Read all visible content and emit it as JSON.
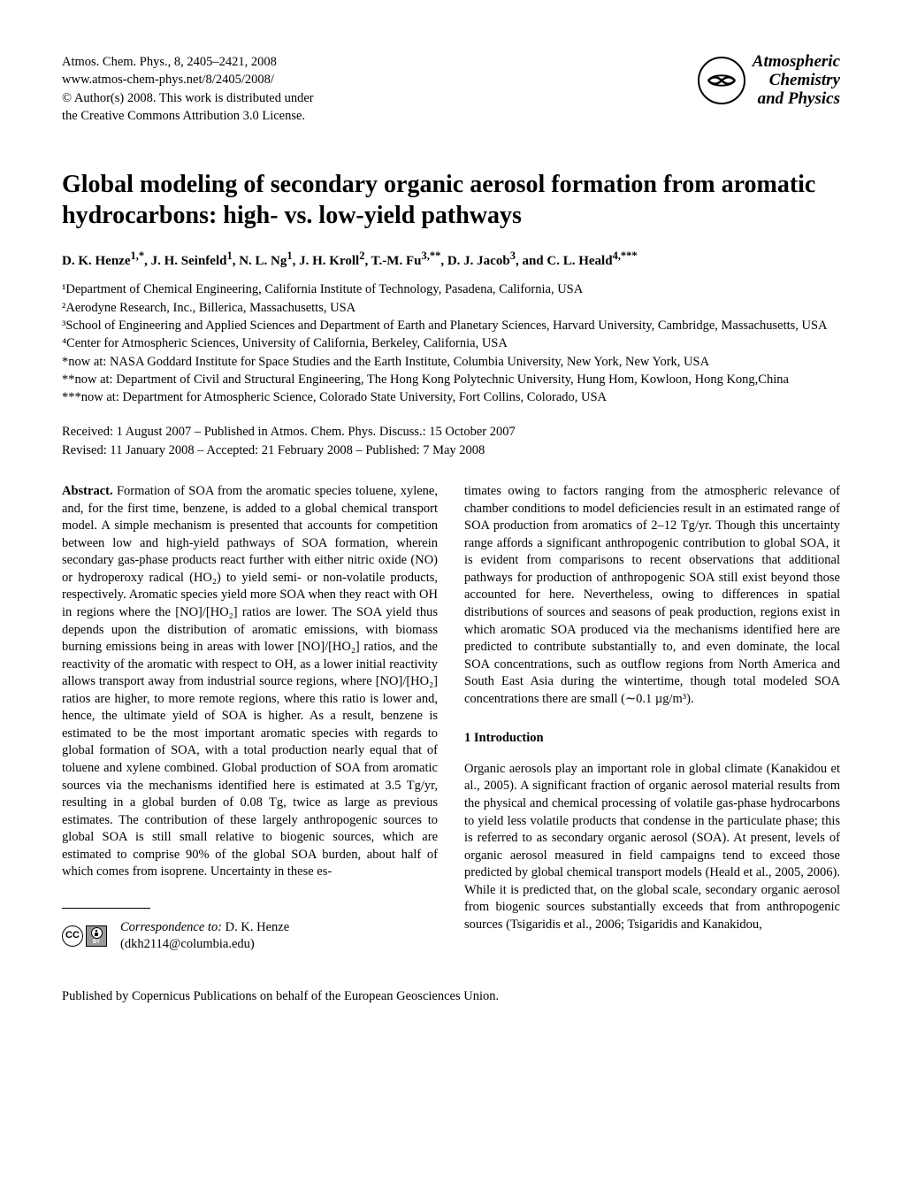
{
  "header": {
    "line1": "Atmos. Chem. Phys., 8, 2405–2421, 2008",
    "line2": "www.atmos-chem-phys.net/8/2405/2008/",
    "line3": "© Author(s) 2008. This work is distributed under",
    "line4": "the Creative Commons Attribution 3.0 License.",
    "badge_line1": "Atmospheric",
    "badge_line2": "Chemistry",
    "badge_line3": "and Physics"
  },
  "title": "Global modeling of secondary organic aerosol formation from aromatic hydrocarbons: high- vs. low-yield pathways",
  "authors_html": "D. K. Henze<sup>1,*</sup>, J. H. Seinfeld<sup>1</sup>, N. L. Ng<sup>1</sup>, J. H. Kroll<sup>2</sup>, T.-M. Fu<sup>3,**</sup>, D. J. Jacob<sup>3</sup>, and C. L. Heald<sup>4,***</sup>",
  "affiliations": {
    "a1": "¹Department of Chemical Engineering, California Institute of Technology, Pasadena, California, USA",
    "a2": "²Aerodyne Research, Inc., Billerica, Massachusetts, USA",
    "a3": "³School of Engineering and Applied Sciences and Department of Earth and Planetary Sciences, Harvard University, Cambridge, Massachusetts, USA",
    "a4": "⁴Center for Atmospheric Sciences, University of California, Berkeley, California, USA",
    "n1": "*now at: NASA Goddard Institute for Space Studies and the Earth Institute, Columbia University, New York, New York, USA",
    "n2": "**now at: Department of Civil and Structural Engineering, The Hong Kong Polytechnic University, Hung Hom, Kowloon, Hong Kong,China",
    "n3": "***now at: Department for Atmospheric Science, Colorado State University, Fort Collins, Colorado, USA"
  },
  "dates": {
    "line1": "Received: 1 August 2007 – Published in Atmos. Chem. Phys. Discuss.: 15 October 2007",
    "line2": "Revised: 11 January 2008 – Accepted: 21 February 2008 – Published: 7 May 2008"
  },
  "abstract_label": "Abstract.",
  "abstract_text": "  Formation of SOA from the aromatic species toluene, xylene, and, for the first time, benzene, is added to a global chemical transport model. A simple mechanism is presented that accounts for competition between low and high-yield pathways of SOA formation, wherein secondary gas-phase products react further with either nitric oxide (NO) or hydroperoxy radical (HO₂) to yield semi- or non-volatile products, respectively. Aromatic species yield more SOA when they react with OH in regions where the [NO]/[HO₂] ratios are lower. The SOA yield thus depends upon the distribution of aromatic emissions, with biomass burning emissions being in areas with lower [NO]/[HO₂] ratios, and the reactivity of the aromatic with respect to OH, as a lower initial reactivity allows transport away from industrial source regions, where [NO]/[HO₂] ratios are higher, to more remote regions, where this ratio is lower and, hence, the ultimate yield of SOA is higher. As a result, benzene is estimated to be the most important aromatic species with regards to global formation of SOA, with a total production nearly equal that of toluene and xylene combined. Global production of SOA from aromatic sources via the mechanisms identified here is estimated at 3.5 Tg/yr, resulting in a global burden of 0.08 Tg, twice as large as previous estimates. The contribution of these largely anthropogenic sources to global SOA is still small relative to biogenic sources, which are estimated to comprise 90% of the global SOA burden, about half of which comes from isoprene. Uncertainty in these es-",
  "col2_para1": "timates owing to factors ranging from the atmospheric relevance of chamber conditions to model deficiencies result in an estimated range of SOA production from aromatics of 2–12 Tg/yr. Though this uncertainty range affords a significant anthropogenic contribution to global SOA, it is evident from comparisons to recent observations that additional pathways for production of anthropogenic SOA still exist beyond those accounted for here. Nevertheless, owing to differences in spatial distributions of sources and seasons of peak production, regions exist in which aromatic SOA produced via the mechanisms identified here are predicted to contribute substantially to, and even dominate, the local SOA concentrations, such as outflow regions from North America and South East Asia during the wintertime, though total modeled SOA concentrations there are small (∼0.1 µg/m³).",
  "intro_title": "1   Introduction",
  "intro_text": "Organic aerosols play an important role in global climate (Kanakidou et al., 2005). A significant fraction of organic aerosol material results from the physical and chemical processing of volatile gas-phase hydrocarbons to yield less volatile products that condense in the particulate phase; this is referred to as secondary organic aerosol (SOA). At present, levels of organic aerosol measured in field campaigns tend to exceed those predicted by global chemical transport models (Heald et al., 2005, 2006). While it is predicted that, on the global scale, secondary organic aerosol from biogenic sources substantially exceeds that from anthropogenic sources (Tsigaridis et al., 2006; Tsigaridis and Kanakidou,",
  "correspondence": {
    "label": "Correspondence to:",
    "name": " D. K. Henze",
    "email": "(dkh2114@columbia.edu)"
  },
  "cc_label": "CC",
  "by_label": "BY",
  "footer": "Published by Copernicus Publications on behalf of the European Geosciences Union."
}
